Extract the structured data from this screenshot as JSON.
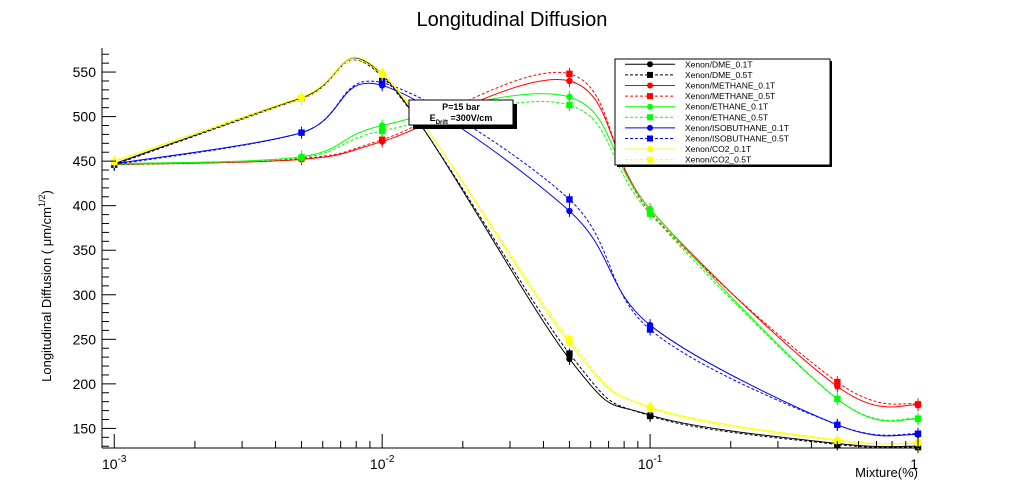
{
  "chart_data": {
    "type": "line",
    "title": "Longitudinal Diffusion",
    "xlabel": "Mixture(%)",
    "ylabel": "Longitudinal Diffusion ( μm/cm",
    "ylabel_superscript": "1/2",
    "ylabel_close": ")",
    "x_scale": "log",
    "xlim": [
      0.0009,
      1.0
    ],
    "ylim": [
      128,
      577
    ],
    "x_ticks": [
      {
        "value": 0.001,
        "base": "10",
        "exp": "-3"
      },
      {
        "value": 0.01,
        "base": "10",
        "exp": "-2"
      },
      {
        "value": 0.1,
        "base": "10",
        "exp": "-1"
      },
      {
        "value": 1,
        "base": "1",
        "exp": ""
      }
    ],
    "y_ticks": [
      150,
      200,
      250,
      300,
      350,
      400,
      450,
      500,
      550
    ],
    "grid": false,
    "legend_position": "top-right",
    "annotation": {
      "line1": "P=15 bar",
      "line2_main": "E",
      "line2_sub": "Drift",
      "line2_rest": " =300V/cm"
    },
    "x": [
      0.001,
      0.005,
      0.01,
      0.05,
      0.1,
      0.5,
      1.0
    ],
    "series": [
      {
        "name": "Xenon/DME_0.1T",
        "color": "#000000",
        "dashed": false,
        "marker": "circle",
        "values": [
          447,
          521,
          547,
          228,
          165,
          133,
          130
        ]
      },
      {
        "name": "Xenon/DME_0.5T",
        "color": "#000000",
        "dashed": true,
        "marker": "square",
        "values": [
          446,
          520,
          545,
          234,
          164,
          132,
          129
        ]
      },
      {
        "name": "Xenon/METHANE_0.1T",
        "color": "#ff0000",
        "dashed": false,
        "marker": "circle",
        "values": [
          446,
          452,
          472,
          540,
          396,
          197,
          176
        ]
      },
      {
        "name": "Xenon/METHANE_0.5T",
        "color": "#ff0000",
        "dashed": true,
        "marker": "square",
        "values": [
          447,
          453,
          474,
          548,
          393,
          202,
          177
        ]
      },
      {
        "name": "Xenon/ETHANE_0.1T",
        "color": "#00ff00",
        "dashed": false,
        "marker": "circle",
        "values": [
          447,
          455,
          490,
          522,
          396,
          183,
          160
        ]
      },
      {
        "name": "Xenon/ETHANE_0.5T",
        "color": "#00ff00",
        "dashed": true,
        "marker": "square",
        "values": [
          446,
          454,
          484,
          513,
          391,
          183,
          161
        ]
      },
      {
        "name": "Xenon/ISOBUTHANE_0.1T",
        "color": "#0000ff",
        "dashed": false,
        "marker": "circle",
        "values": [
          447,
          482,
          535,
          394,
          266,
          154,
          143
        ]
      },
      {
        "name": "Xenon/ISOBUTHANE_0.5T",
        "color": "#0000ff",
        "dashed": true,
        "marker": "square",
        "values": [
          446,
          482,
          538,
          407,
          261,
          154,
          144
        ]
      },
      {
        "name": "Xenon/CO2_0.1T",
        "color": "#ffff00",
        "dashed": false,
        "marker": "circle",
        "values": [
          450,
          522,
          549,
          246,
          174,
          137,
          133
        ]
      },
      {
        "name": "Xenon/CO2_0.5T",
        "color": "#ffff00",
        "dashed": true,
        "marker": "square",
        "values": [
          449,
          520,
          547,
          250,
          173,
          136,
          134
        ]
      }
    ]
  }
}
